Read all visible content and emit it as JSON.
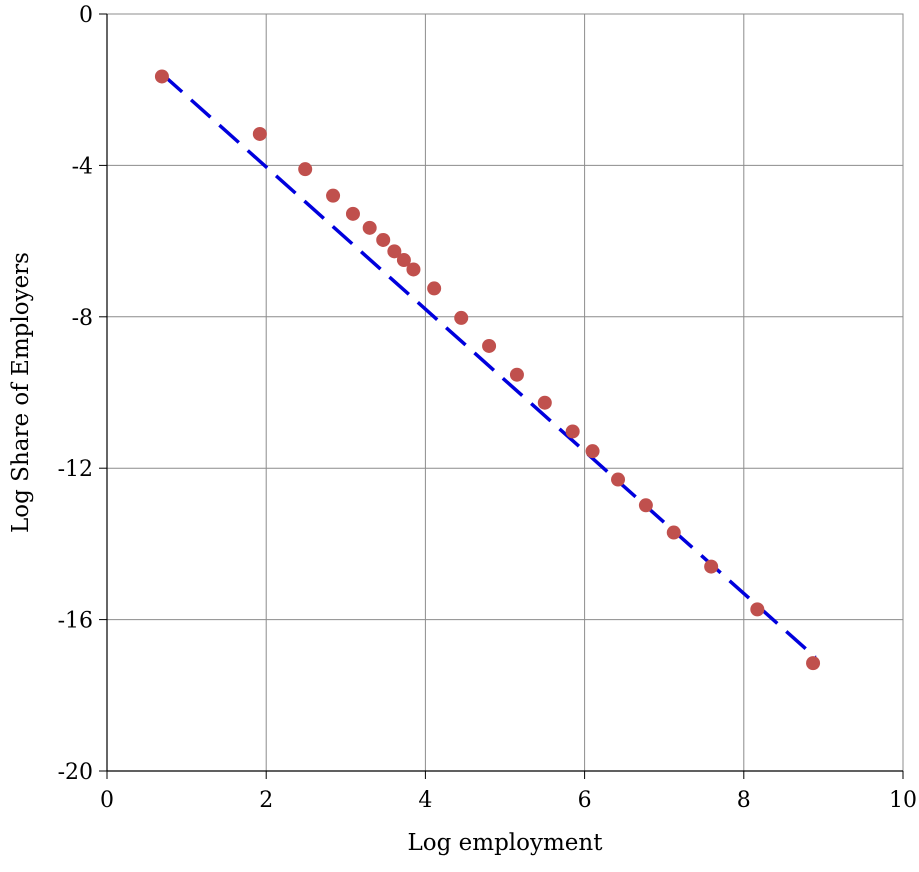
{
  "chart_data": {
    "type": "scatter",
    "title": "",
    "xlabel": "Log employment",
    "ylabel": "Log Share of Employers",
    "xlim": [
      0,
      10
    ],
    "ylim": [
      -20,
      0
    ],
    "x_ticks": [
      0,
      2,
      4,
      6,
      8,
      10
    ],
    "y_ticks": [
      0,
      -4,
      -8,
      -12,
      -16,
      -20
    ],
    "grid": true,
    "legend": "none",
    "series": [
      {
        "kind": "points",
        "color": "#c0504d",
        "points": [
          [
            0.69,
            -1.65
          ],
          [
            1.92,
            -3.17
          ],
          [
            2.49,
            -4.1
          ],
          [
            2.84,
            -4.8
          ],
          [
            3.09,
            -5.28
          ],
          [
            3.3,
            -5.65
          ],
          [
            3.47,
            -5.97
          ],
          [
            3.61,
            -6.27
          ],
          [
            3.73,
            -6.5
          ],
          [
            3.85,
            -6.75
          ],
          [
            4.11,
            -7.25
          ],
          [
            4.45,
            -8.03
          ],
          [
            4.8,
            -8.77
          ],
          [
            5.15,
            -9.53
          ],
          [
            5.5,
            -10.27
          ],
          [
            5.85,
            -11.03
          ],
          [
            6.1,
            -11.55
          ],
          [
            6.42,
            -12.3
          ],
          [
            6.77,
            -12.98
          ],
          [
            7.12,
            -13.7
          ],
          [
            7.59,
            -14.6
          ],
          [
            8.17,
            -15.73
          ],
          [
            8.87,
            -17.15
          ]
        ]
      },
      {
        "kind": "dashed-fit-line",
        "color": "#0000dd",
        "points": [
          [
            0.7,
            -1.6
          ],
          [
            8.9,
            -17.0
          ]
        ]
      }
    ]
  }
}
